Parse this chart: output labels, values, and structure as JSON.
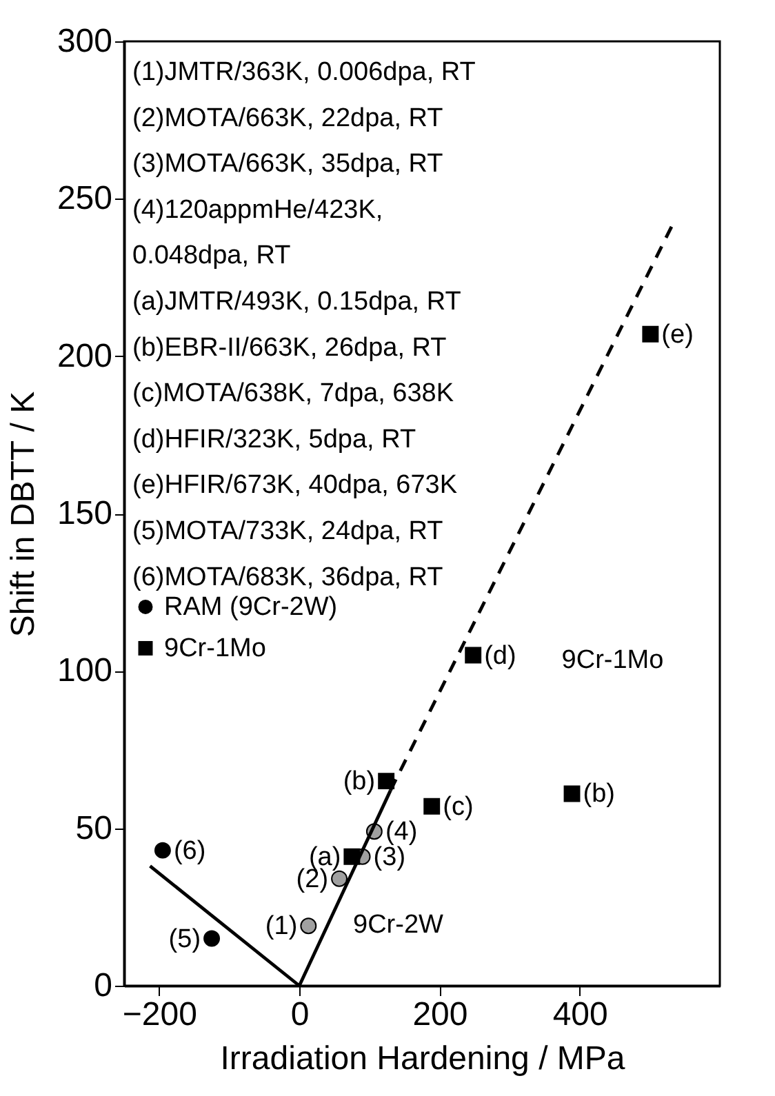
{
  "chart_data": {
    "type": "scatter",
    "xlabel": "Irradiation Hardening / MPa",
    "ylabel": "Shift in DBTT / K",
    "xlim": [
      -250,
      600
    ],
    "xticks": [
      -200,
      0,
      200,
      400
    ],
    "ylim": [
      0,
      300
    ],
    "yticks": [
      0,
      50,
      100,
      150,
      200,
      250,
      300
    ],
    "grid": false,
    "legend": "left",
    "series": [
      {
        "name": "RAM (9Cr-2W)",
        "marker": "circle",
        "color": "#000000",
        "x": [
          -195,
          -125
        ],
        "values": [
          43,
          15
        ]
      },
      {
        "marker": "circle",
        "color": "#a0a0a0",
        "x": [
          13,
          57,
          90,
          107
        ],
        "values": [
          19,
          34,
          41,
          49
        ]
      },
      {
        "name": "9Cr-1Mo",
        "marker": "square",
        "color": "#000000",
        "x": [
          75,
          124,
          189,
          248,
          389,
          501
        ],
        "values": [
          41,
          65,
          57,
          105,
          61,
          207
        ]
      },
      {
        "type": "line",
        "line_style": "solid",
        "color": "#000000",
        "x": [
          0,
          130
        ],
        "values": [
          0,
          62
        ]
      },
      {
        "type": "line",
        "line_style": "solid",
        "color": "#000000",
        "x": [
          -213,
          0
        ],
        "values": [
          38,
          0
        ]
      },
      {
        "type": "line",
        "line_style": "dashed",
        "color": "#000000",
        "x": [
          130,
          533
        ],
        "values": [
          62,
          242
        ]
      }
    ],
    "annotations": [
      "(1)JMTR/363K, 0.006dpa, RT",
      "(2)MOTA/663K, 22dpa, RT",
      "(3)MOTA/663K, 35dpa, RT",
      "(4)120appmHe/423K,",
      "0.048dpa, RT",
      "(a)JMTR/493K, 0.15dpa, RT",
      "(b)EBR-II/663K, 26dpa, RT",
      "(c)MOTA/638K, 7dpa, 638K",
      "(d)HFIR/323K, 5dpa, RT",
      "(e)HFIR/673K, 40dpa, 673K",
      "(5)MOTA/733K, 24dpa, RT",
      "(6)MOTA/683K, 36dpa, RT",
      "9Cr-1Mo",
      "9Cr-2W",
      {
        "text": "(1)",
        "x": 13,
        "y": 19
      },
      {
        "text": "(2)",
        "x": 57,
        "y": 34
      },
      {
        "text": "(a)",
        "x": 75,
        "y": 41
      },
      {
        "text": "(3)",
        "x": 90,
        "y": 41
      },
      {
        "text": "(4)",
        "x": 107,
        "y": 49
      },
      {
        "text": "(b)",
        "x": 124,
        "y": 65
      },
      {
        "text": "(6)",
        "x": -195,
        "y": 43
      },
      {
        "text": "(5)",
        "x": -125,
        "y": 15
      },
      {
        "text": "(c)",
        "x": 189,
        "y": 57
      },
      {
        "text": "(e)",
        "x": 501,
        "y": 207
      },
      {
        "text": "(d)",
        "x": 248,
        "y": 105
      },
      {
        "text": "(b)",
        "x": 389,
        "y": 61
      }
    ]
  }
}
